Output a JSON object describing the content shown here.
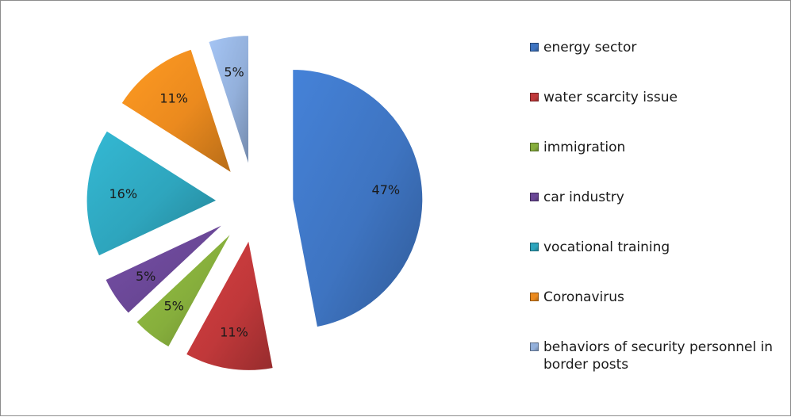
{
  "chart_data": {
    "type": "pie",
    "title": "",
    "legend_position": "right",
    "exploded": true,
    "slices": [
      {
        "label": "energy sector",
        "value": 47,
        "display": "47%",
        "color": "#3e74c1"
      },
      {
        "label": "water scarcity issue",
        "value": 11,
        "display": "11%",
        "color": "#c0383a"
      },
      {
        "label": "immigration",
        "value": 5,
        "display": "5%",
        "color": "#86ae3c"
      },
      {
        "label": "car industry",
        "value": 5,
        "display": "5%",
        "color": "#6a4796"
      },
      {
        "label": "vocational training",
        "value": 16,
        "display": "16%",
        "color": "#2ea5bd"
      },
      {
        "label": "Coronavirus",
        "value": 11,
        "display": "11%",
        "color": "#eb8a1e"
      },
      {
        "label": "behaviors of security personnel in border posts",
        "value": 5,
        "display": "5%",
        "color": "#93b0db"
      }
    ]
  },
  "legend": {
    "items": [
      {
        "label": "energy sector",
        "color": "#3e74c1"
      },
      {
        "label": "water scarcity issue",
        "color": "#c0383a"
      },
      {
        "label": "immigration",
        "color": "#86ae3c"
      },
      {
        "label": "car industry",
        "color": "#6a4796"
      },
      {
        "label": "vocational training",
        "color": "#2ea5bd"
      },
      {
        "label": "Coronavirus",
        "color": "#eb8a1e"
      },
      {
        "label": "behaviors of security personnel in border posts",
        "color": "#93b0db"
      }
    ]
  }
}
